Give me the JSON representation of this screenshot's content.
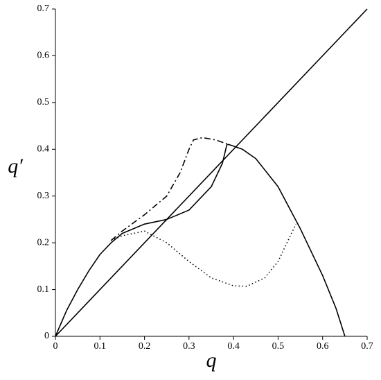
{
  "chart_data": {
    "type": "line",
    "x_label": "q",
    "y_label": "q′",
    "xlim": [
      0,
      0.7
    ],
    "ylim": [
      0,
      0.7
    ],
    "xticks": [
      0,
      0.1,
      0.2,
      0.3,
      0.4,
      0.5,
      0.6,
      0.7
    ],
    "yticks": [
      0,
      0.1,
      0.2,
      0.3,
      0.4,
      0.5,
      0.6,
      0.7
    ],
    "grid": false,
    "series": [
      {
        "color": "#000000",
        "style": "solid",
        "x": [
          0,
          0.7
        ],
        "values": [
          0,
          0.7
        ]
      },
      {
        "color": "#000000",
        "style": "solid",
        "x": [
          0,
          0.025,
          0.05,
          0.075,
          0.1,
          0.125
        ],
        "values": [
          0,
          0.055,
          0.1,
          0.14,
          0.175,
          0.2
        ]
      },
      {
        "color": "#000000",
        "style": "solid",
        "x": [
          0.385,
          0.39,
          0.42,
          0.45,
          0.5,
          0.55,
          0.6,
          0.63,
          0.65
        ],
        "values": [
          0.41,
          0.41,
          0.4,
          0.38,
          0.32,
          0.23,
          0.13,
          0.06,
          0
        ]
      },
      {
        "color": "#000000",
        "style": "solid",
        "x": [
          0.125,
          0.15,
          0.2,
          0.25,
          0.3,
          0.35,
          0.375,
          0.385
        ],
        "values": [
          0.2,
          0.22,
          0.24,
          0.25,
          0.27,
          0.32,
          0.37,
          0.41
        ]
      },
      {
        "color": "#000000",
        "style": "dashdot",
        "x": [
          0.125,
          0.15,
          0.2,
          0.25,
          0.28,
          0.3,
          0.31,
          0.33,
          0.36,
          0.39
        ],
        "values": [
          0.205,
          0.225,
          0.26,
          0.3,
          0.35,
          0.4,
          0.42,
          0.425,
          0.42,
          0.41
        ]
      },
      {
        "color": "#000000",
        "style": "dotted",
        "x": [
          0.125,
          0.15,
          0.2,
          0.25,
          0.3,
          0.35,
          0.4,
          0.43,
          0.47,
          0.5,
          0.54
        ],
        "values": [
          0.205,
          0.215,
          0.225,
          0.2,
          0.16,
          0.125,
          0.108,
          0.107,
          0.125,
          0.16,
          0.24
        ]
      }
    ]
  }
}
